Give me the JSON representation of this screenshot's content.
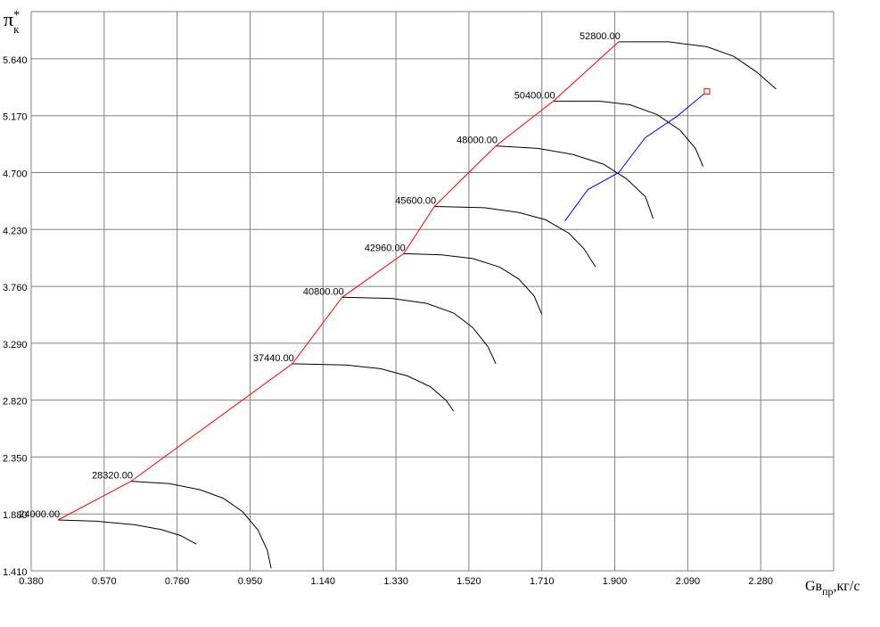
{
  "chart_data": {
    "type": "line",
    "title": "",
    "ylabel": "π*к",
    "ylabel_main": "π",
    "ylabel_sup": "*",
    "ylabel_sub": "к",
    "xlabel": "Gвпр,кг/с",
    "xlabel_main": "Gв",
    "xlabel_sub": "пр",
    "xlabel_tail": ",кг/с",
    "xlim": [
      0.38,
      2.47
    ],
    "ylim": [
      1.41,
      6.03
    ],
    "grid": true,
    "x_ticks": [
      "0.380",
      "0.570",
      "0.760",
      "0.950",
      "1.140",
      "1.330",
      "1.520",
      "1.710",
      "1.900",
      "2.090",
      "2.280"
    ],
    "x_tick_values": [
      0.38,
      0.57,
      0.76,
      0.95,
      1.14,
      1.33,
      1.52,
      1.71,
      1.9,
      2.09,
      2.28
    ],
    "y_ticks": [
      "1.410",
      "1.880",
      "2.350",
      "2.820",
      "3.290",
      "3.760",
      "4.230",
      "4.700",
      "5.170",
      "5.640"
    ],
    "y_tick_values": [
      1.41,
      1.88,
      2.35,
      2.82,
      3.29,
      3.76,
      4.23,
      4.7,
      5.17,
      5.64
    ],
    "colors": {
      "speed_lines": "#000000",
      "surge_line": "#ff0000",
      "operating_line": "#0000ff",
      "grid": "#808080"
    },
    "speed_lines": [
      {
        "label": "24000.00",
        "points": [
          [
            0.45,
            1.83
          ],
          [
            0.55,
            1.82
          ],
          [
            0.65,
            1.79
          ],
          [
            0.72,
            1.75
          ],
          [
            0.77,
            1.7
          ],
          [
            0.81,
            1.63
          ]
        ]
      },
      {
        "label": "28320.00",
        "points": [
          [
            0.64,
            2.15
          ],
          [
            0.74,
            2.13
          ],
          [
            0.82,
            2.08
          ],
          [
            0.88,
            2.01
          ],
          [
            0.93,
            1.9
          ],
          [
            0.97,
            1.75
          ],
          [
            0.995,
            1.58
          ],
          [
            1.005,
            1.43
          ]
        ]
      },
      {
        "label": "37440.00",
        "points": [
          [
            1.06,
            3.12
          ],
          [
            1.2,
            3.11
          ],
          [
            1.29,
            3.08
          ],
          [
            1.36,
            3.02
          ],
          [
            1.42,
            2.93
          ],
          [
            1.46,
            2.82
          ],
          [
            1.48,
            2.73
          ]
        ]
      },
      {
        "label": "40800.00",
        "points": [
          [
            1.19,
            3.67
          ],
          [
            1.32,
            3.66
          ],
          [
            1.41,
            3.62
          ],
          [
            1.48,
            3.54
          ],
          [
            1.53,
            3.42
          ],
          [
            1.57,
            3.26
          ],
          [
            1.59,
            3.12
          ]
        ]
      },
      {
        "label": "42960.00",
        "points": [
          [
            1.35,
            4.03
          ],
          [
            1.45,
            4.02
          ],
          [
            1.53,
            3.99
          ],
          [
            1.6,
            3.92
          ],
          [
            1.65,
            3.82
          ],
          [
            1.69,
            3.68
          ],
          [
            1.71,
            3.53
          ]
        ]
      },
      {
        "label": "45600.00",
        "points": [
          [
            1.43,
            4.42
          ],
          [
            1.56,
            4.41
          ],
          [
            1.65,
            4.37
          ],
          [
            1.72,
            4.31
          ],
          [
            1.78,
            4.2
          ],
          [
            1.82,
            4.07
          ],
          [
            1.85,
            3.92
          ]
        ]
      },
      {
        "label": "48000.00",
        "points": [
          [
            1.59,
            4.92
          ],
          [
            1.7,
            4.9
          ],
          [
            1.79,
            4.85
          ],
          [
            1.87,
            4.77
          ],
          [
            1.93,
            4.65
          ],
          [
            1.98,
            4.5
          ],
          [
            2.0,
            4.32
          ]
        ]
      },
      {
        "label": "50400.00",
        "points": [
          [
            1.74,
            5.29
          ],
          [
            1.86,
            5.29
          ],
          [
            1.94,
            5.26
          ],
          [
            2.01,
            5.18
          ],
          [
            2.07,
            5.05
          ],
          [
            2.11,
            4.9
          ],
          [
            2.13,
            4.75
          ]
        ]
      },
      {
        "label": "52800.00",
        "points": [
          [
            1.91,
            5.78
          ],
          [
            2.04,
            5.78
          ],
          [
            2.14,
            5.74
          ],
          [
            2.21,
            5.66
          ],
          [
            2.27,
            5.53
          ],
          [
            2.32,
            5.39
          ]
        ]
      }
    ],
    "surge_line": {
      "label": "",
      "points": [
        [
          0.45,
          1.83
        ],
        [
          0.64,
          2.15
        ],
        [
          1.06,
          3.12
        ],
        [
          1.19,
          3.67
        ],
        [
          1.35,
          4.03
        ],
        [
          1.43,
          4.42
        ],
        [
          1.59,
          4.92
        ],
        [
          1.74,
          5.29
        ],
        [
          1.91,
          5.78
        ]
      ]
    },
    "operating_line": {
      "label": "",
      "points": [
        [
          1.77,
          4.3
        ],
        [
          1.83,
          4.56
        ],
        [
          1.91,
          4.7
        ],
        [
          1.98,
          4.99
        ],
        [
          2.06,
          5.16
        ],
        [
          2.14,
          5.37
        ]
      ],
      "end_marker": [
        2.14,
        5.37
      ]
    }
  }
}
